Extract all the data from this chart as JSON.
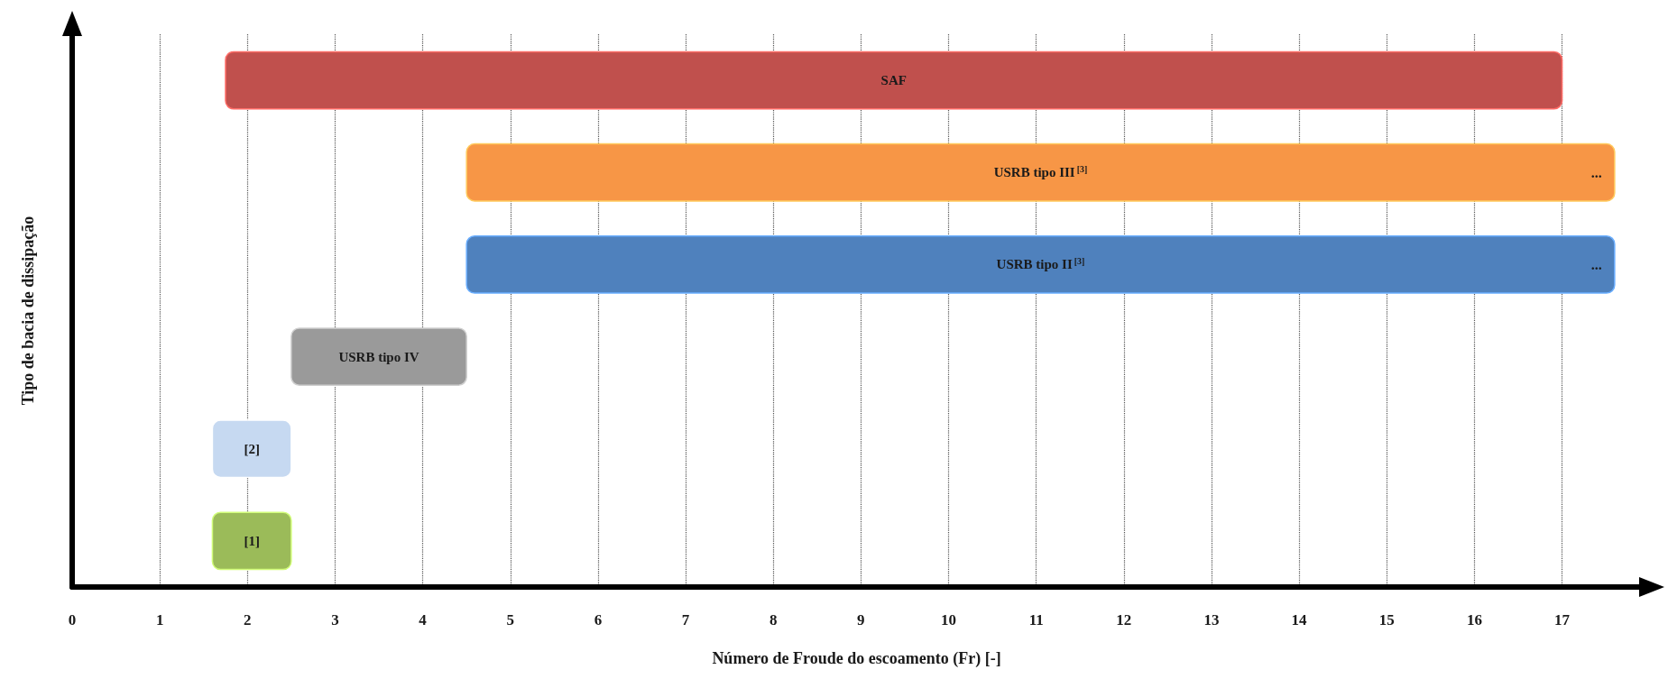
{
  "chart_data": {
    "type": "bar",
    "orientation": "horizontal",
    "xlabel": "Número de Froude do escoamento (Fr) [-]",
    "ylabel": "Tipo de bacia de dissipação",
    "categories": [
      "SAF",
      "USRB tipo III$^{[3]}$",
      "USRB tipo II$^{[3]}$",
      "USRB tipo IV",
      "[2]",
      "[1]"
    ],
    "base": [
      1.75,
      4.5,
      4.5,
      2.5,
      1.6,
      1.6
    ],
    "values": [
      15.25,
      13.1,
      13.1,
      2.0,
      0.9,
      0.9
    ],
    "colors": [
      "#c0504d",
      "#f79646",
      "#4f81bd",
      "#9a9a9a",
      "#c6d9f1",
      "#9bbb59"
    ],
    "xlim": [
      0,
      17.9
    ],
    "xticks": [
      0,
      1,
      2,
      3,
      4,
      5,
      6,
      7,
      8,
      9,
      10,
      11,
      12,
      13,
      14,
      15,
      16,
      17
    ],
    "grid": "x",
    "annotations": [
      "...",
      "..."
    ]
  }
}
